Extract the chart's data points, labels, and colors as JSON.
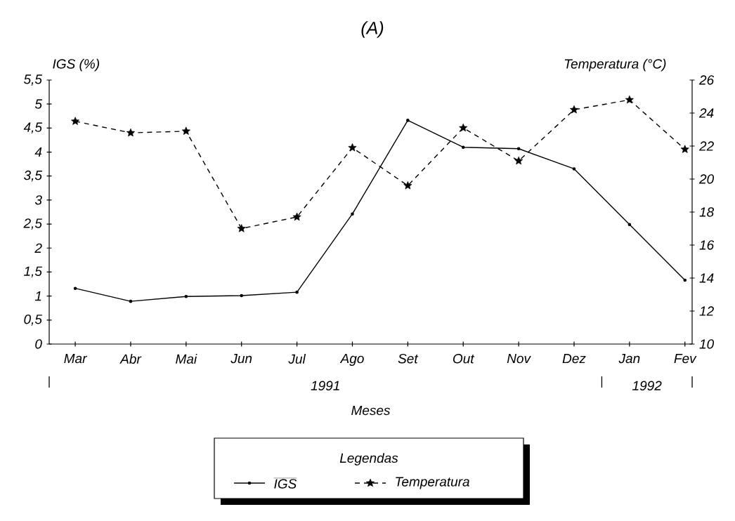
{
  "chart_data": {
    "type": "line",
    "title": "(A)",
    "xlabel": "Meses",
    "ylabel": "IGS (%)",
    "y2label": "Temperatura (°C)",
    "legend_title": "Legendas",
    "legend": "bottom",
    "categories": [
      "Mar",
      "Abr",
      "Mai",
      "Jun",
      "Jul",
      "Ago",
      "Set",
      "Out",
      "Nov",
      "Dez",
      "Jan",
      "Fev"
    ],
    "annotations": [
      "1991",
      "1992"
    ],
    "series": [
      {
        "name": "IGS",
        "color": "#000000",
        "marker": "circle",
        "line_style": "solid",
        "values": [
          1.16,
          0.89,
          0.99,
          1.01,
          1.08,
          2.71,
          4.66,
          4.1,
          4.07,
          3.65,
          2.49,
          1.33
        ]
      },
      {
        "name": "Temperatura",
        "color": "#000000",
        "marker": "star",
        "line_style": "dashed",
        "axis": "y2",
        "values": [
          23.5,
          22.8,
          22.9,
          17.0,
          17.7,
          21.9,
          19.6,
          23.1,
          21.1,
          24.2,
          24.8,
          21.8
        ]
      }
    ],
    "ylim": [
      0,
      5.5
    ],
    "yticks": [
      {
        "value": 0,
        "label": "0"
      },
      {
        "value": 0.5,
        "label": "0,5"
      },
      {
        "value": 1,
        "label": "1"
      },
      {
        "value": 1.5,
        "label": "1,5"
      },
      {
        "value": 2,
        "label": "2"
      },
      {
        "value": 2.5,
        "label": "2,5"
      },
      {
        "value": 3,
        "label": "3"
      },
      {
        "value": 3.5,
        "label": "3,5"
      },
      {
        "value": 4,
        "label": "4"
      },
      {
        "value": 4.5,
        "label": "4,5"
      },
      {
        "value": 5,
        "label": "5"
      },
      {
        "value": 5.5,
        "label": "5,5"
      }
    ],
    "y2lim": [
      10,
      26
    ],
    "y2ticks": [
      10,
      12,
      14,
      16,
      18,
      20,
      22,
      24,
      26
    ]
  }
}
